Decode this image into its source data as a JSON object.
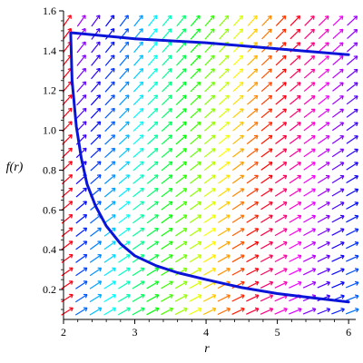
{
  "chart_data": {
    "type": "line",
    "title": "",
    "xlabel": "r",
    "ylabel": "f(r)",
    "xlim": [
      2.0,
      6.1
    ],
    "ylim": [
      0.05,
      1.6
    ],
    "grid": false,
    "legend": "none",
    "x_ticks": [
      "2",
      "3",
      "4",
      "5",
      "6"
    ],
    "x_tick_values": [
      2,
      3,
      4,
      5,
      6
    ],
    "y_ticks": [
      "0.2",
      "0.4",
      "0.6",
      "0.8",
      "1.0",
      "1.2",
      "1.4",
      "1.6"
    ],
    "y_tick_values": [
      0.2,
      0.4,
      0.6,
      0.8,
      1.0,
      1.2,
      1.4,
      1.6
    ],
    "direction_field": {
      "x_range": [
        2.05,
        6.05
      ],
      "y_range": [
        0.09,
        1.55
      ],
      "nx": 21,
      "ny": 23,
      "colormap": "rainbow (hue by direction)"
    },
    "series": [
      {
        "color": "#0a14d8",
        "x": [
          6.0,
          5.0,
          4.0,
          3.0,
          2.12
        ],
        "y": [
          1.38,
          1.41,
          1.44,
          1.46,
          1.49
        ]
      },
      {
        "color": "#0a14d8",
        "x": [
          2.1,
          2.12,
          2.18,
          2.25,
          2.33,
          2.45,
          2.6,
          2.8,
          3.0,
          3.3,
          3.6,
          4.0,
          4.5,
          5.0,
          5.5,
          6.0
        ],
        "y": [
          1.49,
          1.25,
          1.02,
          0.86,
          0.73,
          0.62,
          0.52,
          0.43,
          0.37,
          0.32,
          0.285,
          0.25,
          0.21,
          0.18,
          0.158,
          0.138
        ]
      }
    ]
  }
}
